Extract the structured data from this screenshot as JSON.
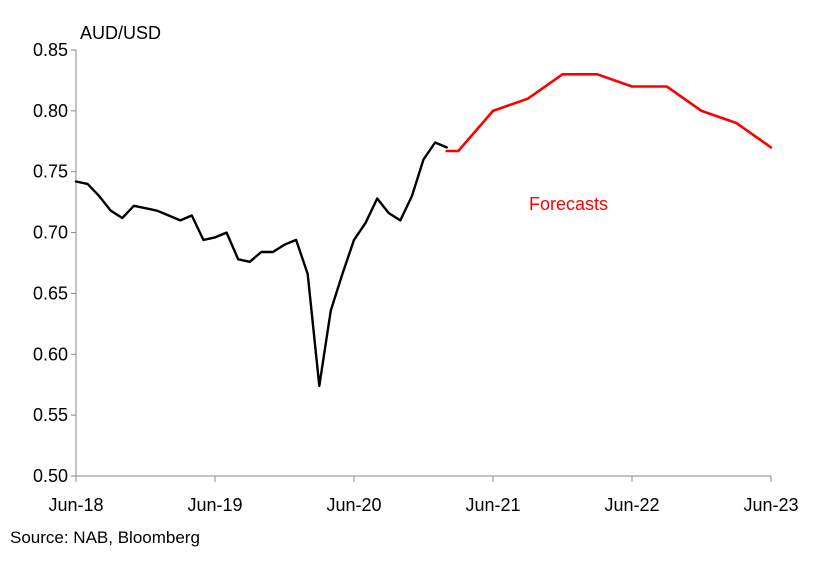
{
  "chart_data": {
    "type": "line",
    "ylabel": "AUD/USD",
    "ylim": [
      0.5,
      0.85
    ],
    "y_ticks": [
      "0.50",
      "0.55",
      "0.60",
      "0.65",
      "0.70",
      "0.75",
      "0.80",
      "0.85"
    ],
    "y_tick_values": [
      0.5,
      0.55,
      0.6,
      0.65,
      0.7,
      0.75,
      0.8,
      0.85
    ],
    "x_ticks": [
      "Jun-18",
      "Jun-19",
      "Jun-20",
      "Jun-21",
      "Jun-22",
      "Jun-23"
    ],
    "x_tick_dates": [
      "2018-06",
      "2019-06",
      "2020-06",
      "2021-06",
      "2022-06",
      "2023-06"
    ],
    "grid": false,
    "legend": "none",
    "annotations": [
      {
        "text": "Forecasts",
        "color": "#ff0000"
      }
    ],
    "series": [
      {
        "color": "#000000",
        "points": [
          [
            "2018-06",
            0.742
          ],
          [
            "2018-07",
            0.74
          ],
          [
            "2018-08",
            0.73
          ],
          [
            "2018-09",
            0.718
          ],
          [
            "2018-10",
            0.712
          ],
          [
            "2018-11",
            0.722
          ],
          [
            "2018-12",
            0.72
          ],
          [
            "2019-01",
            0.718
          ],
          [
            "2019-02",
            0.714
          ],
          [
            "2019-03",
            0.71
          ],
          [
            "2019-04",
            0.714
          ],
          [
            "2019-05",
            0.694
          ],
          [
            "2019-06",
            0.696
          ],
          [
            "2019-07",
            0.7
          ],
          [
            "2019-08",
            0.678
          ],
          [
            "2019-09",
            0.676
          ],
          [
            "2019-10",
            0.684
          ],
          [
            "2019-11",
            0.684
          ],
          [
            "2019-12",
            0.69
          ],
          [
            "2020-01",
            0.694
          ],
          [
            "2020-02",
            0.666
          ],
          [
            "2020-03",
            0.574
          ],
          [
            "2020-04",
            0.636
          ],
          [
            "2020-05",
            0.666
          ],
          [
            "2020-06",
            0.694
          ],
          [
            "2020-07",
            0.708
          ],
          [
            "2020-08",
            0.728
          ],
          [
            "2020-09",
            0.716
          ],
          [
            "2020-10",
            0.71
          ],
          [
            "2020-11",
            0.73
          ],
          [
            "2020-12",
            0.76
          ],
          [
            "2021-01",
            0.774
          ],
          [
            "2021-02",
            0.77
          ]
        ]
      },
      {
        "color": "#ff0000",
        "points": [
          [
            "2021-02",
            0.767
          ],
          [
            "2021-03",
            0.767
          ],
          [
            "2021-06",
            0.8
          ],
          [
            "2021-09",
            0.81
          ],
          [
            "2021-12",
            0.83
          ],
          [
            "2022-03",
            0.83
          ],
          [
            "2022-06",
            0.82
          ],
          [
            "2022-09",
            0.82
          ],
          [
            "2022-12",
            0.8
          ],
          [
            "2023-03",
            0.79
          ],
          [
            "2023-06",
            0.77
          ]
        ]
      }
    ]
  },
  "source": "Source: NAB, Bloomberg"
}
